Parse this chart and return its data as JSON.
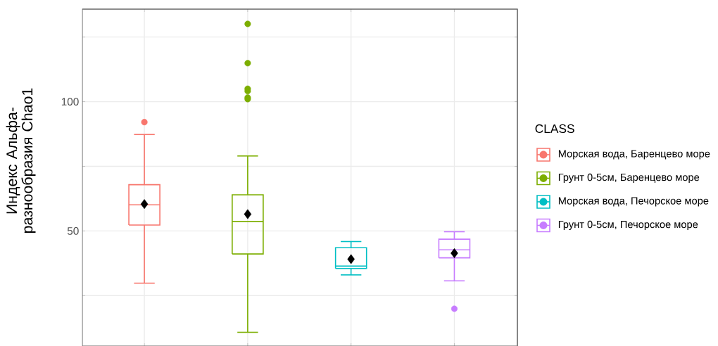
{
  "chart_data": {
    "type": "box",
    "ylabel": "Индекс Альфа-разнообразия Chao1",
    "legend_title": "CLASS",
    "categories": [
      null,
      null,
      null,
      null
    ],
    "ylim": [
      5.5,
      135.8
    ],
    "yticks": [
      {
        "value": 25,
        "label": null
      },
      50,
      {
        "value": 75,
        "label": null
      },
      100,
      {
        "value": 125,
        "label": null
      }
    ],
    "grid": true,
    "legend": "right",
    "marker": "circle",
    "series": [
      {
        "name": "Морская вода, Баренцево море",
        "color": "#F8766D",
        "boxes": [
          {
            "low": 29.8,
            "q1": 52.3,
            "median": 60.1,
            "q3": 67.9,
            "high": 87.3,
            "mean": 60.4,
            "outliers": [
              92.1
            ]
          },
          null,
          null,
          null
        ]
      },
      {
        "name": "Грунт 0-5см, Баренцево море",
        "color": "#7CAE00",
        "boxes": [
          null,
          {
            "low": 10.8,
            "q1": 41.1,
            "median": 53.6,
            "q3": 64.0,
            "high": 79.0,
            "mean": 56.5,
            "outliers": [
              130.1,
              114.9,
              105.0,
              104.1,
              101.6,
              101.0
            ]
          },
          null,
          null
        ]
      },
      {
        "name": "Морская вода, Печорское море",
        "color": "#00BFC4",
        "boxes": [
          null,
          null,
          {
            "low": 33.0,
            "q1": 35.5,
            "median": 36.4,
            "q3": 43.5,
            "high": 45.9,
            "mean": 39.1
          },
          null
        ]
      },
      {
        "name": "Грунт 0-5см, Печорское море",
        "color": "#C77CFF",
        "boxes": [
          null,
          null,
          null,
          {
            "low": 30.7,
            "q1": 39.6,
            "median": 42.7,
            "q3": 46.8,
            "high": 49.7,
            "mean": 41.4,
            "outliers": [
              19.9
            ]
          }
        ]
      }
    ]
  }
}
